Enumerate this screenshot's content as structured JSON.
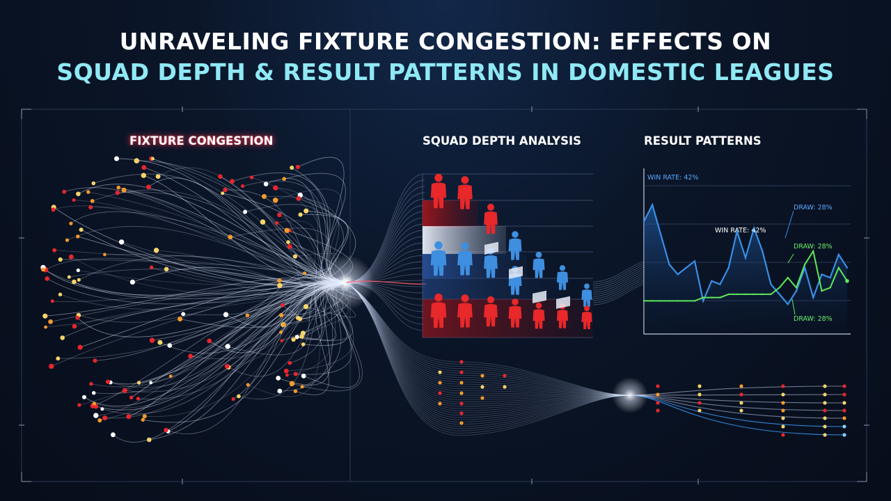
{
  "title": {
    "line1": "UNRAVELING FIXTURE CONGESTION: EFFECTS ON",
    "line2": "SQUAD DEPTH & RESULT PATTERNS IN DOMESTIC LEAGUES"
  },
  "panels": {
    "congestion": "FIXTURE CONGESTION",
    "squad": "SQUAD DEPTH ANALYSIS",
    "results": "RESULT PATTERNS"
  },
  "annotations": {
    "win_top": "WIN RATE: 42%",
    "win_mid": "WIN RATE: 42%",
    "draw_top": "DRAW: 28%",
    "draw_mid": "DRAW: 28%",
    "draw_bottom": "DRAW: 28%"
  },
  "colors": {
    "background": "#0b1629",
    "title_accent": "#8fe9f5",
    "node_red": "#e8262e",
    "node_orange": "#f39a2c",
    "node_yellow": "#f6d46a",
    "player_red": "#e8282a",
    "player_blue": "#3f8fe0",
    "win_line": "#3a8fe6",
    "draw_line": "#5ee85a"
  },
  "chart_data": {
    "type": "line",
    "title": "RESULT PATTERNS",
    "xlabel": "",
    "ylabel": "",
    "x": [
      1,
      2,
      3,
      4,
      5,
      6,
      7,
      8,
      9,
      10,
      11,
      12,
      13,
      14,
      15,
      16,
      17,
      18,
      19,
      20,
      21,
      22,
      23,
      24,
      25
    ],
    "series": [
      {
        "values": [
          0.68,
          0.78,
          0.6,
          0.42,
          0.36,
          0.4,
          0.44,
          0.2,
          0.32,
          0.3,
          0.4,
          0.62,
          0.46,
          0.64,
          0.5,
          0.3,
          0.24,
          0.18,
          0.26,
          0.4,
          0.22,
          0.36,
          0.34,
          0.48,
          0.4
        ]
      },
      {
        "values": [
          0.2,
          0.2,
          0.2,
          0.2,
          0.2,
          0.2,
          0.2,
          0.22,
          0.22,
          0.22,
          0.24,
          0.24,
          0.24,
          0.24,
          0.24,
          0.24,
          0.28,
          0.34,
          0.28,
          0.42,
          0.5,
          0.26,
          0.28,
          0.4,
          0.32
        ]
      }
    ]
  }
}
